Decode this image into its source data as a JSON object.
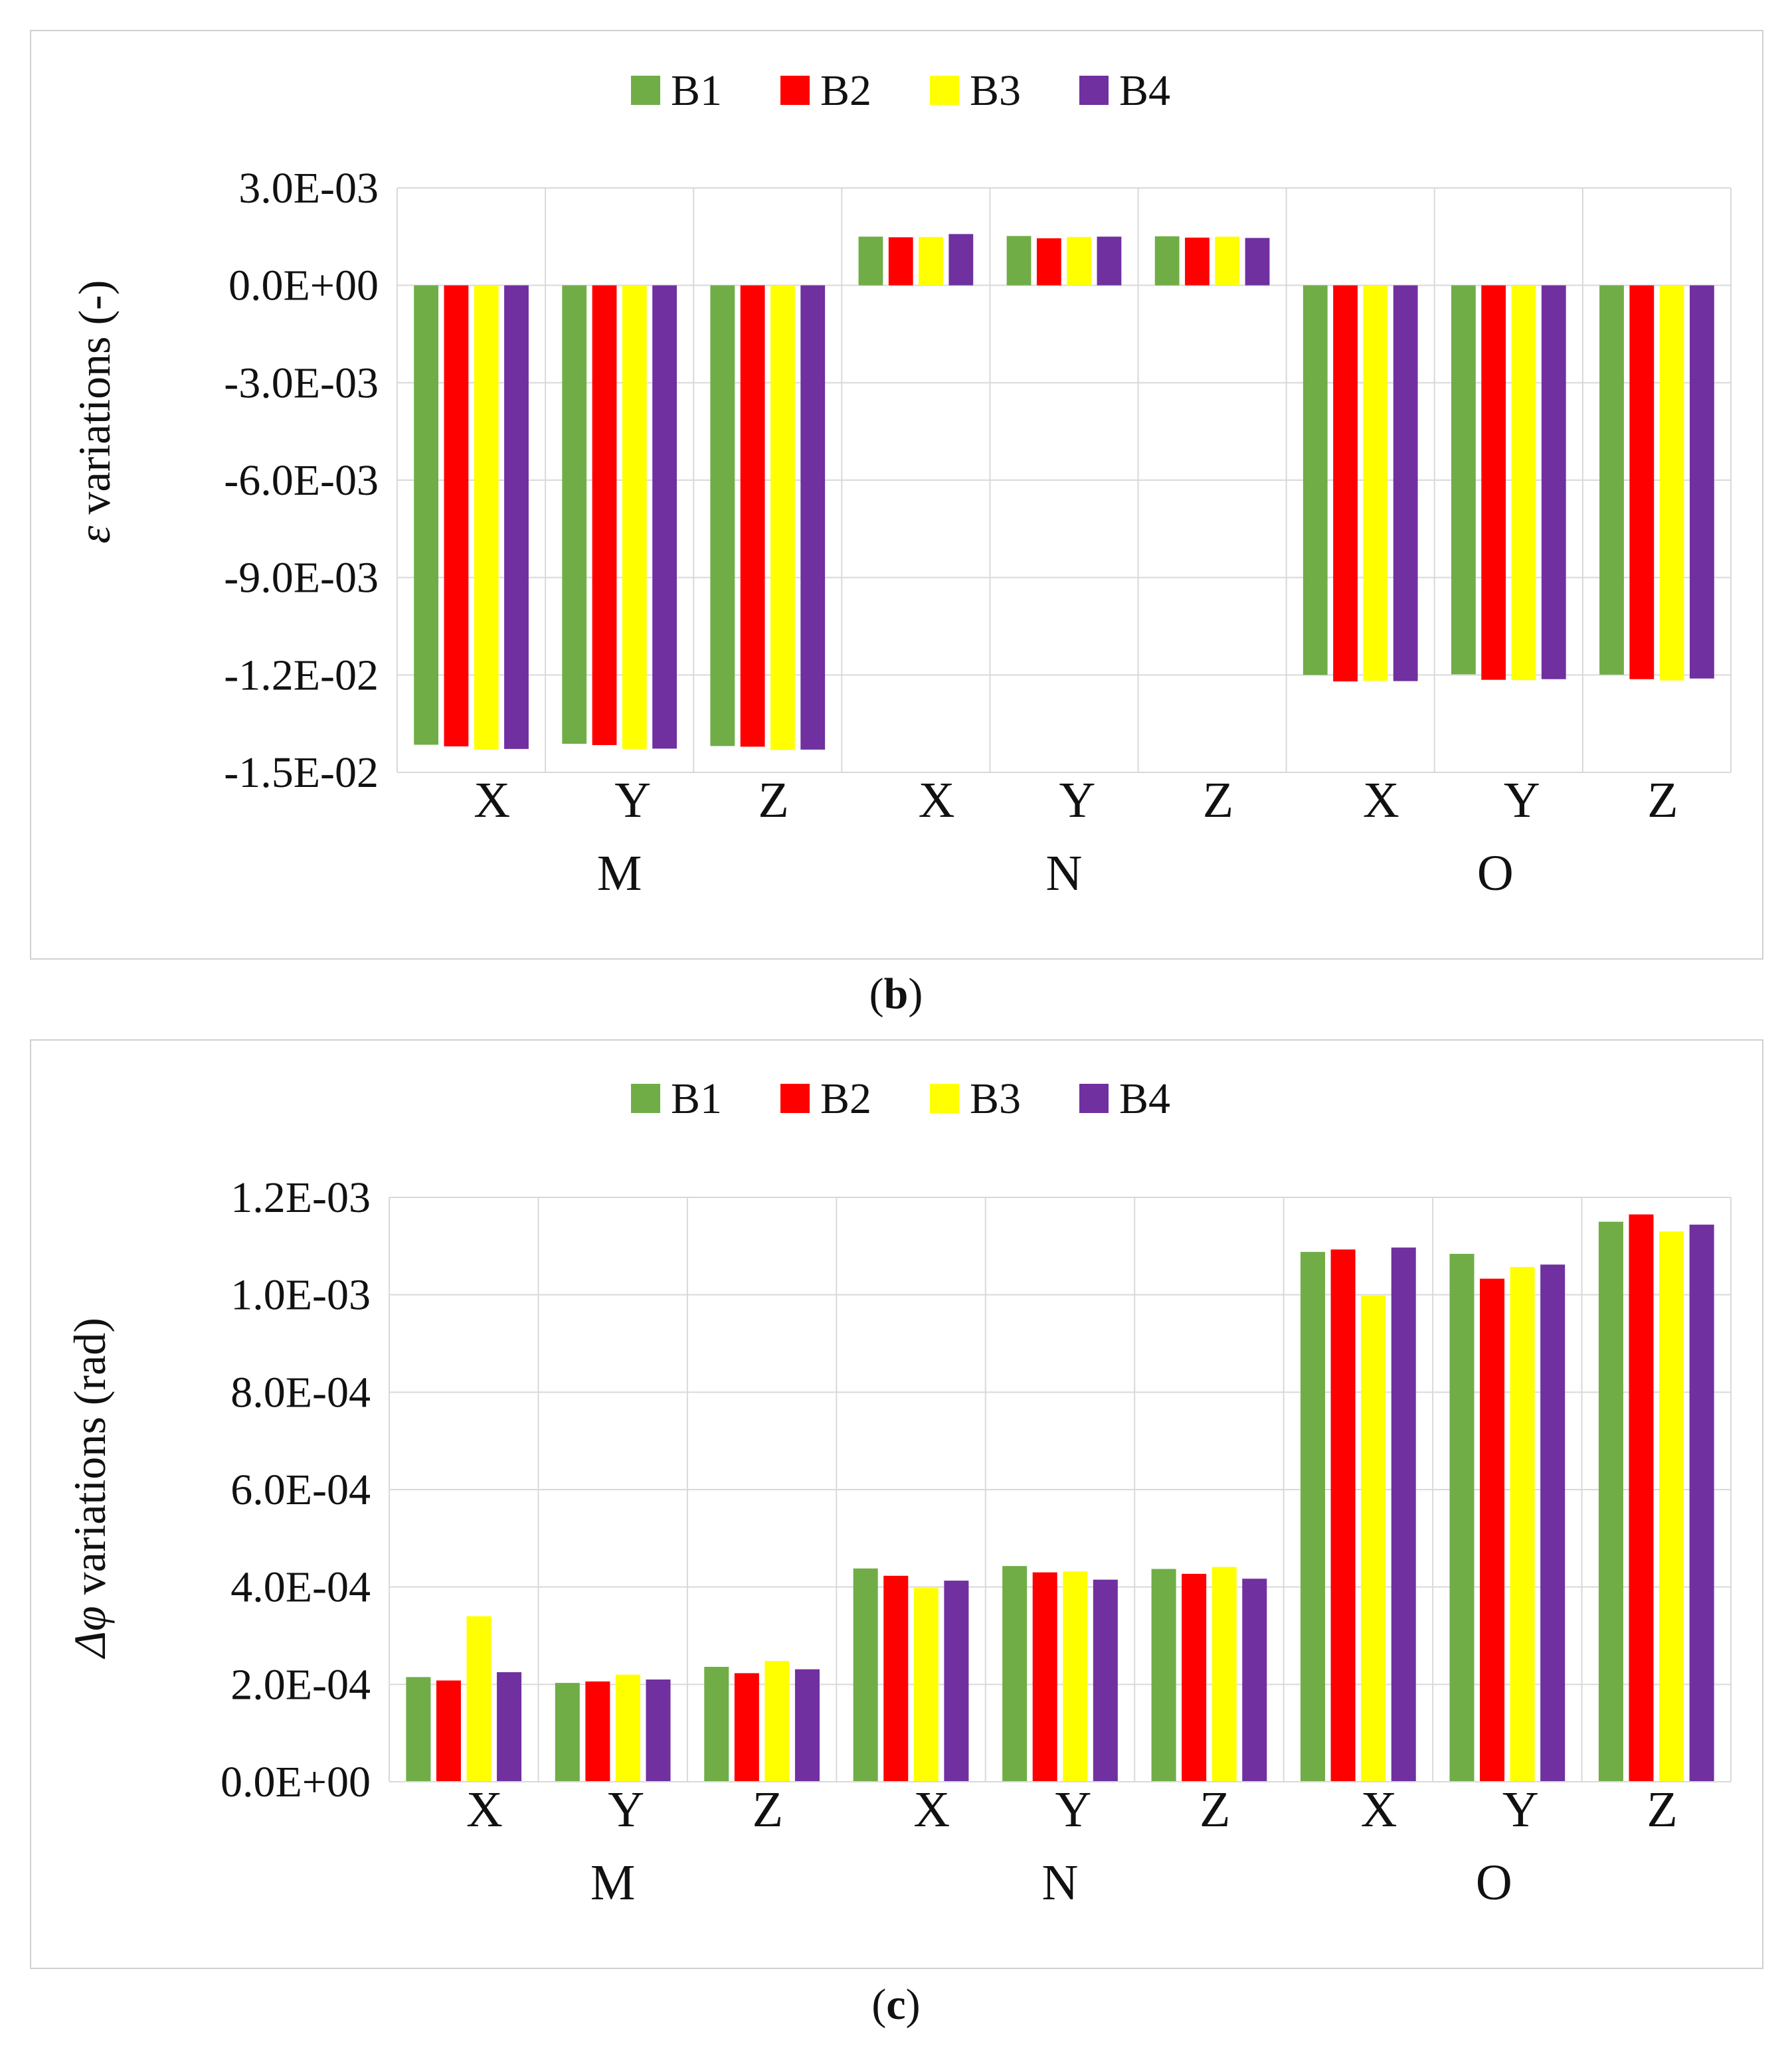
{
  "chart_data": [
    {
      "type": "bar",
      "caption": "(b)",
      "ylabel_symbol": "ε",
      "ylabel": "variations (-)",
      "series_names": [
        "B1",
        "B2",
        "B3",
        "B4"
      ],
      "series_colors": [
        "#70AD47",
        "#FF0000",
        "#FFFF00",
        "#7030A0"
      ],
      "groups": [
        "M",
        "N",
        "O"
      ],
      "subcategories": [
        "X",
        "Y",
        "Z"
      ],
      "y_ticks": [
        "3.0E-03",
        "0.0E+00",
        "-3.0E-03",
        "-6.0E-03",
        "-9.0E-03",
        "-1.2E-02",
        "-1.5E-02"
      ],
      "ylim": [
        -0.015,
        0.003
      ],
      "series": [
        {
          "name": "B1",
          "values": [
            -0.01415,
            -0.01412,
            -0.01419,
            0.0015,
            0.00152,
            0.00151,
            -0.012,
            -0.01198,
            -0.01199
          ]
        },
        {
          "name": "B2",
          "values": [
            -0.0142,
            -0.01416,
            -0.01421,
            0.00148,
            0.00145,
            0.00147,
            -0.0122,
            -0.01215,
            -0.01213
          ]
        },
        {
          "name": "B3",
          "values": [
            -0.0143,
            -0.01428,
            -0.01431,
            0.00149,
            0.00149,
            0.0015,
            -0.01218,
            -0.01216,
            -0.01217
          ]
        },
        {
          "name": "B4",
          "values": [
            -0.01428,
            -0.01427,
            -0.0143,
            0.00158,
            0.0015,
            0.00146,
            -0.01219,
            -0.01213,
            -0.01211
          ]
        }
      ]
    },
    {
      "type": "bar",
      "caption": "(c)",
      "ylabel_symbol": "Δφ",
      "ylabel": "variations (rad)",
      "series_names": [
        "B1",
        "B2",
        "B3",
        "B4"
      ],
      "series_colors": [
        "#70AD47",
        "#FF0000",
        "#FFFF00",
        "#7030A0"
      ],
      "groups": [
        "M",
        "N",
        "O"
      ],
      "subcategories": [
        "X",
        "Y",
        "Z"
      ],
      "y_ticks": [
        "1.2E-03",
        "1.0E-03",
        "8.0E-04",
        "6.0E-04",
        "4.0E-04",
        "2.0E-04",
        "0.0E+00"
      ],
      "ylim": [
        0,
        0.0012
      ],
      "series": [
        {
          "name": "B1",
          "values": [
            0.000215,
            0.000203,
            0.000236,
            0.000438,
            0.000443,
            0.000437,
            0.001088,
            0.001084,
            0.00115
          ]
        },
        {
          "name": "B2",
          "values": [
            0.000208,
            0.000206,
            0.000223,
            0.000423,
            0.00043,
            0.000427,
            0.001093,
            0.001033,
            0.001165
          ]
        },
        {
          "name": "B3",
          "values": [
            0.00034,
            0.00022,
            0.000248,
            0.000398,
            0.000432,
            0.000441,
            0.000998,
            0.001057,
            0.00113
          ]
        },
        {
          "name": "B4",
          "values": [
            0.000225,
            0.00021,
            0.000231,
            0.000413,
            0.000415,
            0.000417,
            0.001097,
            0.001062,
            0.001144
          ]
        }
      ]
    }
  ]
}
